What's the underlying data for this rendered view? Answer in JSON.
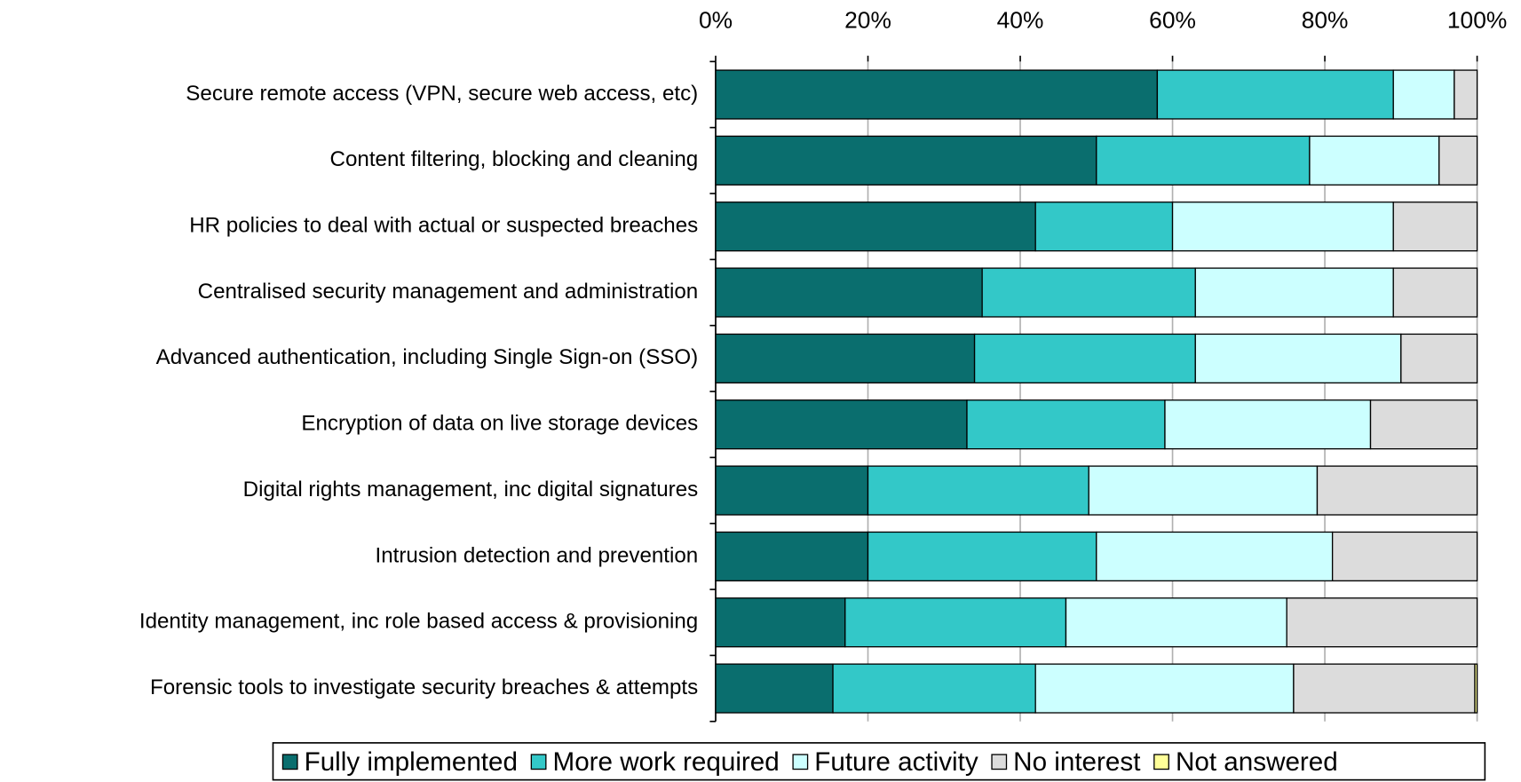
{
  "chart_data": {
    "type": "stacked-bar-horizontal",
    "categories": [
      "Secure remote access (VPN, secure web access, etc)",
      "Content filtering, blocking and cleaning",
      "HR policies to deal with actual or suspected breaches",
      "Centralised security management and administration",
      "Advanced authentication, including Single Sign-on (SSO)",
      "Encryption of data on live storage devices",
      "Digital rights management, inc digital signatures",
      "Intrusion detection and prevention",
      "Identity management, inc role based access & provisioning",
      "Forensic tools to investigate security breaches & attempts"
    ],
    "series": [
      {
        "name": "Fully implemented",
        "color": "#0a6e6e",
        "values": [
          58,
          50,
          42,
          35,
          34,
          33,
          20,
          20,
          17,
          15.4
        ]
      },
      {
        "name": "More work required",
        "color": "#33c8c8",
        "values": [
          31,
          28,
          18,
          28,
          29,
          26,
          29,
          30,
          29,
          26.6
        ]
      },
      {
        "name": "Future activity",
        "color": "#ccffff",
        "values": [
          8,
          17,
          29,
          26,
          27,
          27,
          30,
          31,
          29,
          33.9
        ]
      },
      {
        "name": "No interest",
        "color": "#dcdcdc",
        "values": [
          3,
          5,
          11,
          11,
          10,
          14,
          21,
          19,
          25,
          23.8
        ]
      },
      {
        "name": "Not answered",
        "color": "#ffff99",
        "values": [
          0,
          0,
          0,
          0,
          0,
          0,
          0,
          0,
          0,
          0.3
        ]
      }
    ],
    "xlim": [
      0,
      100
    ],
    "xticks": [
      {
        "value": 0,
        "label": "0%"
      },
      {
        "value": 20,
        "label": "20%"
      },
      {
        "value": 40,
        "label": "40%"
      },
      {
        "value": 60,
        "label": "60%"
      },
      {
        "value": 80,
        "label": "80%"
      },
      {
        "value": 100,
        "label": "100%"
      }
    ],
    "grid": true,
    "legend": "bottom"
  }
}
